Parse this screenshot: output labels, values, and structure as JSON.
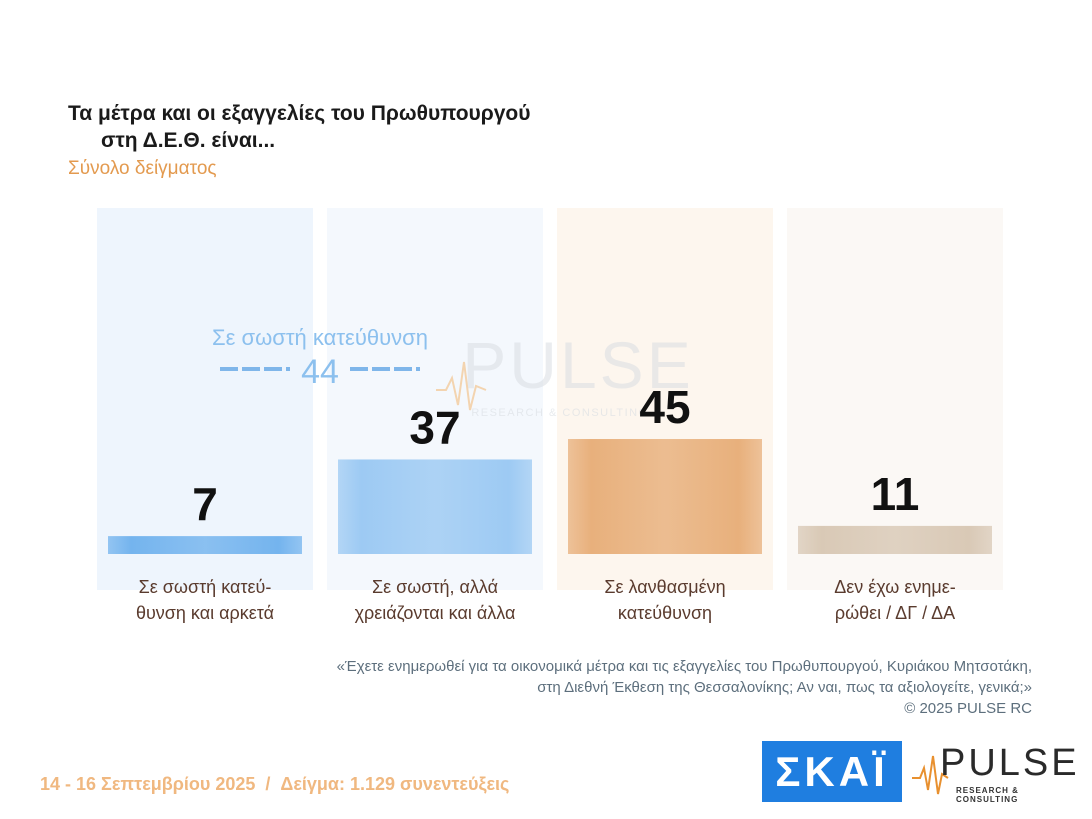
{
  "title_line1": "Τα μέτρα και οι εξαγγελίες του Πρωθυπουργού",
  "title_line2": "στη Δ.Ε.Θ. είναι...",
  "subtitle": "Σύνολο δείγματος",
  "chart_data": {
    "type": "bar",
    "categories": [
      "Σε σωστή κατεύθυνση και αρκετά",
      "Σε σωστή, αλλά χρειάζονται και άλλα",
      "Σε λανθασμένη κατεύθυνση",
      "Δεν έχω ενημερωθεί / ΔΓ / ΔΑ"
    ],
    "category_lines": [
      [
        "Σε σωστή κατεύ-",
        "θυνση και αρκετά"
      ],
      [
        "Σε σωστή, αλλά",
        "χρειάζονται και άλλα"
      ],
      [
        "Σε λανθασμένη",
        "κατεύθυνση"
      ],
      [
        "Δεν έχω ενημε-",
        "ρώθει / ΔΓ / ΔΑ"
      ]
    ],
    "values": [
      7,
      37,
      45,
      11
    ],
    "ylim": [
      0,
      100
    ],
    "bar_colors": [
      "#74b4ee",
      "#9dcaf3",
      "#e8b07c",
      "#d9c9b6"
    ],
    "column_bg_colors": [
      "#eef5fd",
      "#f4f8fd",
      "#fdf6ee",
      "#fbf8f5"
    ],
    "group_annotation": {
      "label": "Σε σωστή κατεύθυνση",
      "value": 44,
      "color": "#8cc0ee"
    }
  },
  "question_line1": "«Έχετε ενημερωθεί για τα οικονομικά μέτρα και τις εξαγγελίες του Πρωθυπουργού, Κυριάκου Μητσοτάκη,",
  "question_line2": "στη Διεθνή Έκθεση της Θεσσαλονίκης; Αν ναι, πως τα αξιολογείτε, γενικά;»",
  "copyright": "©  2025  PULSE RC",
  "footer_dates": "14 - 16 Σεπτεμβρίου 2025",
  "footer_sep": "/",
  "footer_sample": "Δείγμα:  1.129 συνεντεύξεις",
  "logo_skai": "ΣΚΑΪ",
  "logo_pulse": "PULSE",
  "logo_pulse_sub": "RESEARCH & CONSULTING",
  "watermark_word": "PULSE",
  "watermark_sub": "RESEARCH & CONSULTING"
}
